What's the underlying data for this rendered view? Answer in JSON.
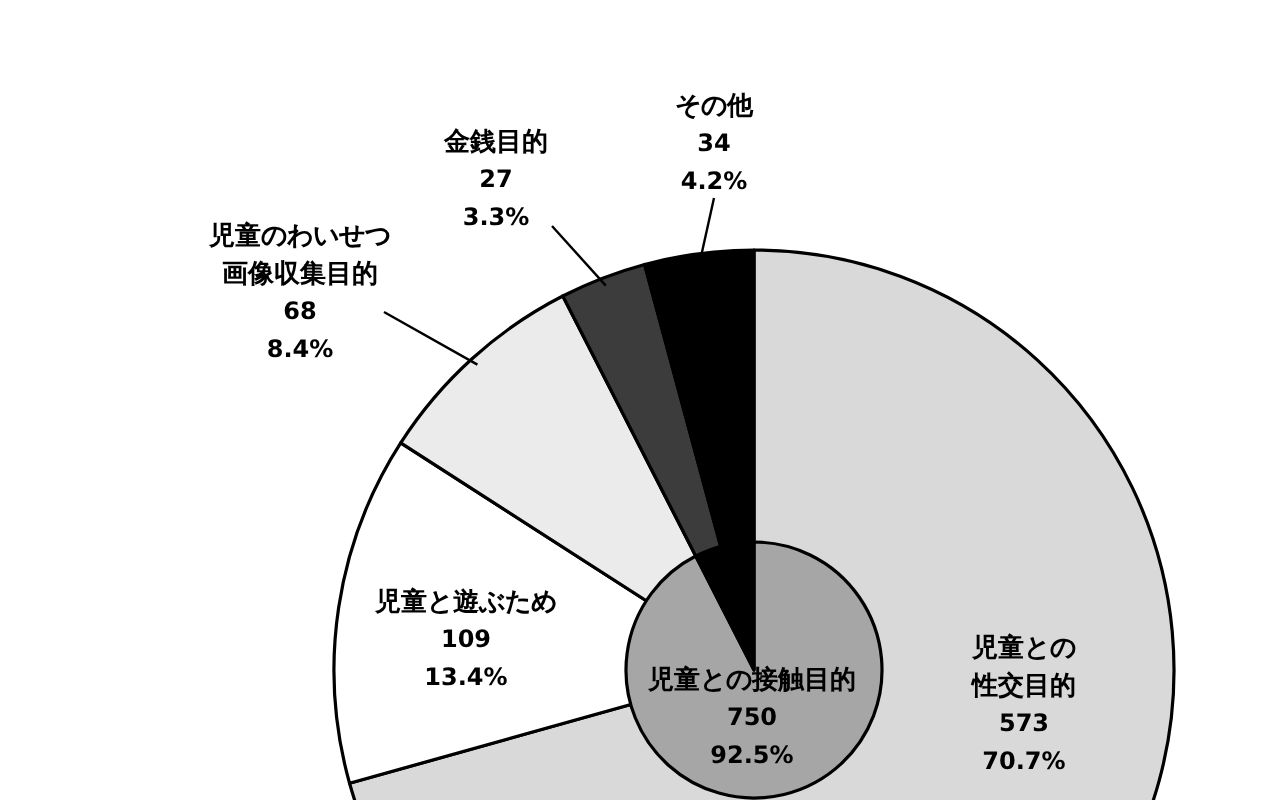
{
  "chart_data": [
    {
      "type": "pie",
      "categories": [
        "児童との性交目的",
        "児童と遊ぶため",
        "児童のわいせつ画像収集目的",
        "金銭目的",
        "その他"
      ],
      "values": [
        573,
        109,
        68,
        27,
        34
      ],
      "value_labels": [
        "573\n70.7%",
        "109\n13.4%",
        "68\n8.4%",
        "27\n3.3%",
        "34\n4.2%"
      ],
      "colors": [
        "#d9d9d9",
        "#ffffff",
        "#ebebeb",
        "#3c3c3c",
        "#000000"
      ]
    },
    {
      "type": "pie",
      "categories": [
        "児童との接触目的",
        null
      ],
      "values": [
        750,
        61
      ],
      "value_labels": [
        "750\n92.5%",
        null
      ],
      "colors": [
        "#a6a6a6",
        "#000000"
      ]
    }
  ]
}
